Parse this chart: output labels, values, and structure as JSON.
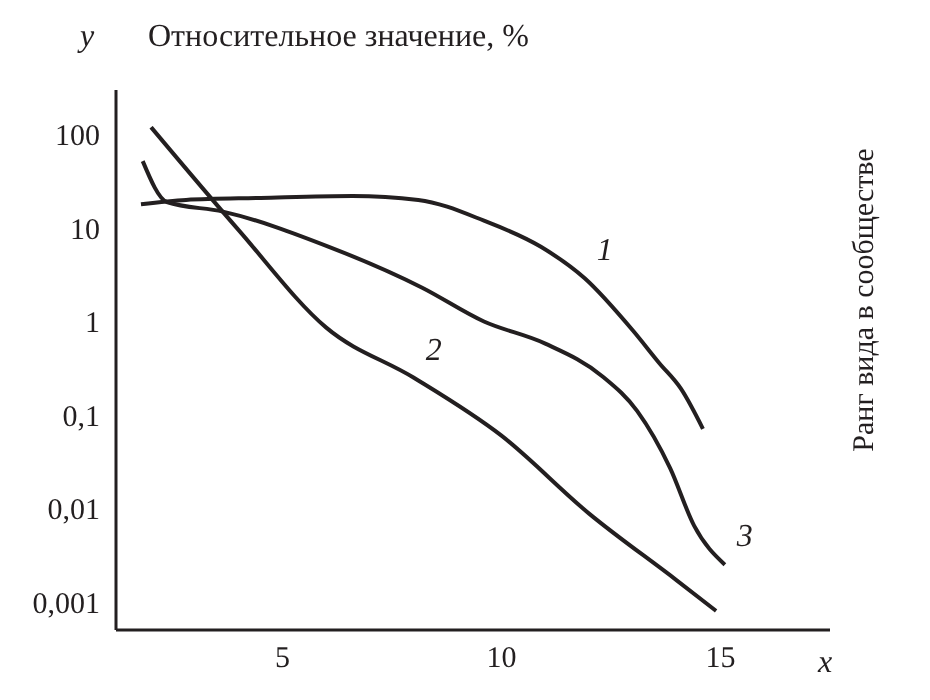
{
  "chart_data": {
    "type": "line",
    "title": "Относительное значение, %",
    "xlabel": "x",
    "ylabel": "y",
    "annotations": [
      "Ранг вида в сообществе",
      {
        "text": "1",
        "x": 11.9,
        "y": 2.9
      },
      {
        "text": "2",
        "x": 8,
        "y": 0.25
      },
      {
        "text": "3",
        "x": 15.1,
        "y": 0.0025
      }
    ],
    "series": [
      {
        "color": "#231f20",
        "x": [
          1.77,
          2.8,
          4.5,
          6.6,
          8.1,
          9.6,
          10.9,
          11.9,
          13.0,
          13.6,
          14.1,
          14.6
        ],
        "values": [
          18,
          20,
          21,
          22,
          20,
          12,
          6.3,
          2.9,
          0.8,
          0.36,
          0.19,
          0.071
        ]
      },
      {
        "color": "#231f20",
        "x": [
          2,
          4,
          6,
          8,
          10,
          12,
          14,
          14.9
        ],
        "values": [
          120,
          9.5,
          0.86,
          0.25,
          0.06,
          0.0088,
          0.0017,
          0.0008
        ]
      },
      {
        "color": "#231f20",
        "x": [
          1.81,
          2.36,
          3.64,
          6.06,
          8.19,
          9.6,
          11.0,
          12.3,
          13.1,
          13.85,
          14.4,
          15.1
        ],
        "values": [
          52,
          19,
          15,
          6.3,
          2.3,
          1,
          0.58,
          0.26,
          0.11,
          0.027,
          0.0065,
          0.0025
        ]
      }
    ],
    "xlim": [
      1.2,
      17.5
    ],
    "xticks": [
      5,
      10,
      15
    ],
    "ylim": [
      0.0005,
      300
    ],
    "yticks": [
      {
        "value": 0.001,
        "label": "0,001"
      },
      {
        "value": 0.01,
        "label": "0,01"
      },
      {
        "value": 0.1,
        "label": "0,1"
      },
      1,
      10,
      100
    ],
    "log": "y",
    "grid": false,
    "marker": "none",
    "line_style": "solid"
  }
}
